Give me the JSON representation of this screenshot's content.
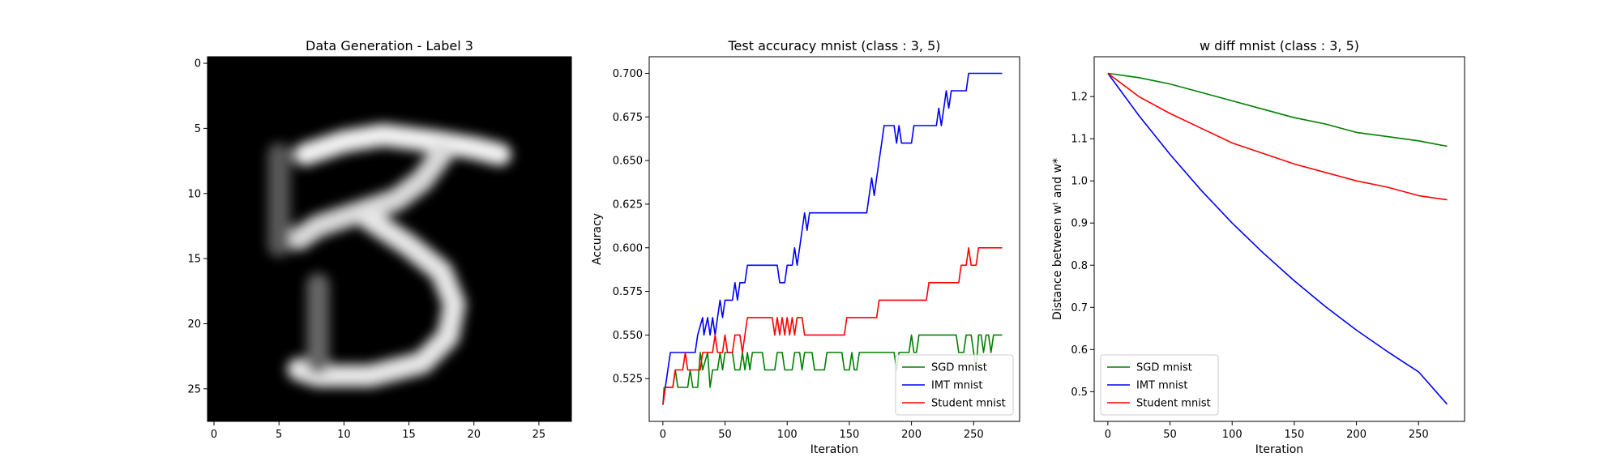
{
  "chart_data": [
    {
      "type": "heatmap",
      "title": "Data Generation - Label 3",
      "colormap": "gray",
      "xlim": [
        -0.5,
        27.5
      ],
      "ylim": [
        27.5,
        -0.5
      ],
      "xticks": [
        0,
        5,
        10,
        15,
        20,
        25
      ],
      "yticks": [
        0,
        5,
        10,
        15,
        20,
        25
      ],
      "strokes": [
        {
          "points": [
            [
              7,
              7
            ],
            [
              10,
              6
            ],
            [
              13,
              5.5
            ],
            [
              17,
              6
            ],
            [
              20,
              6.5
            ],
            [
              22,
              7
            ]
          ],
          "intensity": 0.95
        },
        {
          "points": [
            [
              17.5,
              7
            ],
            [
              16,
              9
            ],
            [
              14,
              10.5
            ],
            [
              11,
              11.5
            ],
            [
              8,
              12.5
            ],
            [
              6.5,
              13.5
            ]
          ],
          "intensity": 0.85
        },
        {
          "points": [
            [
              12,
              12
            ],
            [
              15,
              14
            ],
            [
              17.5,
              16
            ],
            [
              18.5,
              18.5
            ],
            [
              18,
              21
            ],
            [
              16,
              23
            ],
            [
              12,
              24
            ],
            [
              8,
              24
            ],
            [
              6.5,
              23.5
            ]
          ],
          "intensity": 0.9
        },
        {
          "points": [
            [
              8,
              17
            ],
            [
              8,
              20
            ],
            [
              8,
              23
            ]
          ],
          "intensity": 0.4
        },
        {
          "points": [
            [
              5,
              7
            ],
            [
              5,
              10
            ],
            [
              5,
              14
            ]
          ],
          "intensity": 0.35
        }
      ]
    },
    {
      "type": "line",
      "title": "Test accuracy mnist (class : 3, 5)",
      "xlabel": "Iteration",
      "ylabel": "Accuracy",
      "xlim": [
        -11,
        287
      ],
      "ylim": [
        0.5005,
        0.7095
      ],
      "xticks": [
        0,
        50,
        100,
        150,
        200,
        250
      ],
      "yticks": [
        0.525,
        0.55,
        0.575,
        0.6,
        0.625,
        0.65,
        0.675,
        0.7
      ],
      "ytick_labels": [
        "0.525",
        "0.550",
        "0.575",
        "0.600",
        "0.625",
        "0.650",
        "0.675",
        "0.700"
      ],
      "legend_position": "lower-right",
      "series": [
        {
          "name": "SGD mnist",
          "color": "#008000",
          "points": [
            [
              0,
              0.51
            ],
            [
              1,
              0.52
            ],
            [
              8,
              0.52
            ],
            [
              10,
              0.53
            ],
            [
              12,
              0.52
            ],
            [
              20,
              0.52
            ],
            [
              22,
              0.53
            ],
            [
              24,
              0.52
            ],
            [
              28,
              0.52
            ],
            [
              30,
              0.54
            ],
            [
              32,
              0.53
            ],
            [
              36,
              0.54
            ],
            [
              38,
              0.52
            ],
            [
              40,
              0.53
            ],
            [
              44,
              0.53
            ],
            [
              46,
              0.54
            ],
            [
              48,
              0.53
            ],
            [
              50,
              0.54
            ],
            [
              56,
              0.54
            ],
            [
              58,
              0.53
            ],
            [
              62,
              0.53
            ],
            [
              64,
              0.54
            ],
            [
              66,
              0.53
            ],
            [
              68,
              0.54
            ],
            [
              70,
              0.53
            ],
            [
              72,
              0.54
            ],
            [
              80,
              0.54
            ],
            [
              82,
              0.53
            ],
            [
              90,
              0.53
            ],
            [
              92,
              0.54
            ],
            [
              96,
              0.54
            ],
            [
              98,
              0.53
            ],
            [
              104,
              0.53
            ],
            [
              106,
              0.54
            ],
            [
              110,
              0.54
            ],
            [
              112,
              0.53
            ],
            [
              114,
              0.54
            ],
            [
              120,
              0.54
            ],
            [
              122,
              0.53
            ],
            [
              130,
              0.53
            ],
            [
              132,
              0.54
            ],
            [
              144,
              0.54
            ],
            [
              146,
              0.53
            ],
            [
              150,
              0.53
            ],
            [
              152,
              0.54
            ],
            [
              154,
              0.53
            ],
            [
              156,
              0.53
            ],
            [
              158,
              0.54
            ],
            [
              186,
              0.54
            ],
            [
              188,
              0.53
            ],
            [
              190,
              0.54
            ],
            [
              198,
              0.54
            ],
            [
              200,
              0.55
            ],
            [
              202,
              0.54
            ],
            [
              204,
              0.54
            ],
            [
              206,
              0.55
            ],
            [
              236,
              0.55
            ],
            [
              238,
              0.54
            ],
            [
              242,
              0.54
            ],
            [
              244,
              0.55
            ],
            [
              248,
              0.55
            ],
            [
              250,
              0.54
            ],
            [
              252,
              0.53
            ],
            [
              254,
              0.55
            ],
            [
              256,
              0.55
            ],
            [
              258,
              0.54
            ],
            [
              260,
              0.55
            ],
            [
              262,
              0.55
            ],
            [
              264,
              0.54
            ],
            [
              266,
              0.55
            ],
            [
              273,
              0.55
            ]
          ]
        },
        {
          "name": "IMT mnist",
          "color": "#0000ff",
          "points": [
            [
              0,
              0.51
            ],
            [
              2,
              0.52
            ],
            [
              4,
              0.53
            ],
            [
              6,
              0.54
            ],
            [
              26,
              0.54
            ],
            [
              28,
              0.55
            ],
            [
              32,
              0.56
            ],
            [
              33,
              0.55
            ],
            [
              36,
              0.56
            ],
            [
              38,
              0.55
            ],
            [
              40,
              0.56
            ],
            [
              42,
              0.55
            ],
            [
              44,
              0.56
            ],
            [
              46,
              0.57
            ],
            [
              48,
              0.56
            ],
            [
              50,
              0.57
            ],
            [
              56,
              0.57
            ],
            [
              58,
              0.58
            ],
            [
              60,
              0.57
            ],
            [
              62,
              0.58
            ],
            [
              66,
              0.58
            ],
            [
              68,
              0.59
            ],
            [
              92,
              0.59
            ],
            [
              94,
              0.58
            ],
            [
              98,
              0.58
            ],
            [
              100,
              0.59
            ],
            [
              104,
              0.59
            ],
            [
              106,
              0.6
            ],
            [
              108,
              0.59
            ],
            [
              110,
              0.6
            ],
            [
              112,
              0.61
            ],
            [
              114,
              0.62
            ],
            [
              116,
              0.61
            ],
            [
              118,
              0.62
            ],
            [
              164,
              0.62
            ],
            [
              166,
              0.63
            ],
            [
              168,
              0.64
            ],
            [
              170,
              0.63
            ],
            [
              172,
              0.64
            ],
            [
              174,
              0.65
            ],
            [
              176,
              0.66
            ],
            [
              178,
              0.67
            ],
            [
              186,
              0.67
            ],
            [
              188,
              0.66
            ],
            [
              190,
              0.67
            ],
            [
              192,
              0.66
            ],
            [
              200,
              0.66
            ],
            [
              202,
              0.67
            ],
            [
              220,
              0.67
            ],
            [
              222,
              0.68
            ],
            [
              224,
              0.67
            ],
            [
              226,
              0.68
            ],
            [
              228,
              0.69
            ],
            [
              230,
              0.68
            ],
            [
              232,
              0.69
            ],
            [
              244,
              0.69
            ],
            [
              246,
              0.7
            ],
            [
              273,
              0.7
            ]
          ]
        },
        {
          "name": "Student mnist",
          "color": "#ff0000",
          "points": [
            [
              0,
              0.51
            ],
            [
              2,
              0.52
            ],
            [
              8,
              0.52
            ],
            [
              10,
              0.53
            ],
            [
              16,
              0.53
            ],
            [
              18,
              0.54
            ],
            [
              20,
              0.53
            ],
            [
              30,
              0.53
            ],
            [
              32,
              0.54
            ],
            [
              40,
              0.54
            ],
            [
              42,
              0.55
            ],
            [
              44,
              0.54
            ],
            [
              48,
              0.54
            ],
            [
              50,
              0.55
            ],
            [
              52,
              0.54
            ],
            [
              56,
              0.54
            ],
            [
              58,
              0.55
            ],
            [
              62,
              0.55
            ],
            [
              64,
              0.54
            ],
            [
              66,
              0.55
            ],
            [
              68,
              0.56
            ],
            [
              88,
              0.56
            ],
            [
              90,
              0.55
            ],
            [
              92,
              0.56
            ],
            [
              94,
              0.55
            ],
            [
              96,
              0.56
            ],
            [
              98,
              0.55
            ],
            [
              100,
              0.56
            ],
            [
              102,
              0.55
            ],
            [
              104,
              0.56
            ],
            [
              106,
              0.55
            ],
            [
              108,
              0.56
            ],
            [
              112,
              0.56
            ],
            [
              114,
              0.55
            ],
            [
              146,
              0.55
            ],
            [
              148,
              0.56
            ],
            [
              172,
              0.56
            ],
            [
              174,
              0.57
            ],
            [
              212,
              0.57
            ],
            [
              214,
              0.58
            ],
            [
              238,
              0.58
            ],
            [
              240,
              0.59
            ],
            [
              244,
              0.59
            ],
            [
              246,
              0.6
            ],
            [
              248,
              0.59
            ],
            [
              252,
              0.59
            ],
            [
              254,
              0.6
            ],
            [
              273,
              0.6
            ]
          ]
        }
      ]
    },
    {
      "type": "line",
      "title": "w diff mnist (class : 3, 5)",
      "xlabel": "Iteration",
      "ylabel": "Distance between wᵗ and w*",
      "xlim": [
        -11,
        287
      ],
      "ylim": [
        0.4295,
        1.2945
      ],
      "xticks": [
        0,
        50,
        100,
        150,
        200,
        250
      ],
      "yticks": [
        0.5,
        0.6,
        0.7,
        0.8,
        0.9,
        1.0,
        1.1,
        1.2
      ],
      "ytick_labels": [
        "0.5",
        "0.6",
        "0.7",
        "0.8",
        "0.9",
        "1.0",
        "1.1",
        "1.2"
      ],
      "legend_position": "lower-left",
      "series": [
        {
          "name": "SGD mnist",
          "color": "#008000",
          "points": [
            [
              0,
              1.255
            ],
            [
              25,
              1.245
            ],
            [
              50,
              1.23
            ],
            [
              75,
              1.21
            ],
            [
              100,
              1.19
            ],
            [
              125,
              1.17
            ],
            [
              150,
              1.15
            ],
            [
              175,
              1.135
            ],
            [
              200,
              1.115
            ],
            [
              225,
              1.105
            ],
            [
              250,
              1.095
            ],
            [
              273,
              1.082
            ]
          ]
        },
        {
          "name": "IMT mnist",
          "color": "#0000ff",
          "points": [
            [
              0,
              1.255
            ],
            [
              25,
              1.155
            ],
            [
              50,
              1.063
            ],
            [
              75,
              0.978
            ],
            [
              100,
              0.9
            ],
            [
              125,
              0.829
            ],
            [
              150,
              0.763
            ],
            [
              175,
              0.702
            ],
            [
              200,
              0.646
            ],
            [
              225,
              0.595
            ],
            [
              250,
              0.547
            ],
            [
              273,
              0.47
            ]
          ]
        },
        {
          "name": "Student mnist",
          "color": "#ff0000",
          "points": [
            [
              0,
              1.255
            ],
            [
              25,
              1.2
            ],
            [
              50,
              1.16
            ],
            [
              75,
              1.125
            ],
            [
              100,
              1.09
            ],
            [
              125,
              1.065
            ],
            [
              150,
              1.04
            ],
            [
              175,
              1.02
            ],
            [
              200,
              1.0
            ],
            [
              225,
              0.985
            ],
            [
              250,
              0.965
            ],
            [
              273,
              0.955
            ]
          ]
        }
      ]
    }
  ]
}
